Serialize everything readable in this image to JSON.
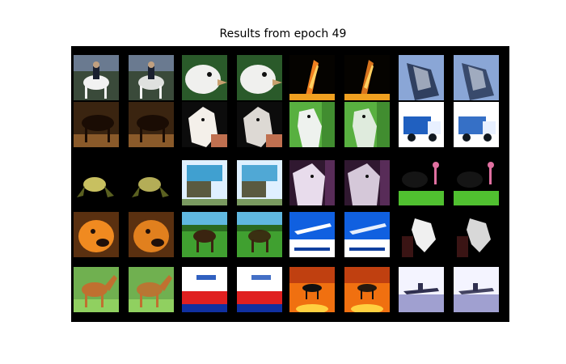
{
  "figure": {
    "title": "Results from epoch 49",
    "background": "#000000"
  },
  "grid": {
    "rows": 5,
    "groups": 4,
    "images_per_group": 2,
    "pairs": [
      [
        {
          "subject": "horse-rider",
          "colors": {
            "bg": "#3a4a3a",
            "fg": "#f2f2f2",
            "accent": "#1a2030"
          }
        },
        {
          "subject": "bird-head",
          "colors": {
            "bg": "#2a5a2a",
            "fg": "#f0f0ee",
            "accent": "#c9a070"
          }
        },
        {
          "subject": "bird-flame",
          "colors": {
            "bg": "#050300",
            "fg": "#f08020",
            "accent": "#ffd060"
          }
        },
        {
          "subject": "horse-head",
          "colors": {
            "bg": "#8aa6d6",
            "fg": "#304060",
            "accent": "#e6ecf6"
          }
        }
      ],
      [
        {
          "subject": "dark-horse",
          "colors": {
            "bg": "#3a2410",
            "fg": "#1a0c04",
            "accent": "#8a5a2a"
          }
        },
        {
          "subject": "white-horse-head",
          "colors": {
            "bg": "#0c0c0c",
            "fg": "#f4f0ea",
            "accent": "#c07050"
          }
        },
        {
          "subject": "horse-on-grass",
          "colors": {
            "bg": "#58b040",
            "fg": "#eef2ee",
            "accent": "#2a6a20"
          }
        },
        {
          "subject": "truck",
          "colors": {
            "bg": "#ffffff",
            "fg": "#2060c0",
            "accent": "#101820"
          }
        }
      ],
      [
        {
          "subject": "frog",
          "colors": {
            "bg": "#000000",
            "fg": "#c8c060",
            "accent": "#5a6020"
          }
        },
        {
          "subject": "blue-truck",
          "colors": {
            "bg": "#dff0ff",
            "fg": "#40a0d0",
            "accent": "#5a5a40"
          }
        },
        {
          "subject": "horse-close",
          "colors": {
            "bg": "#301830",
            "fg": "#e8dcec",
            "accent": "#804080"
          }
        },
        {
          "subject": "bird-pink",
          "colors": {
            "bg": "#000000",
            "fg": "#50c030",
            "accent": "#e070a0"
          }
        }
      ],
      [
        {
          "subject": "orange-dog",
          "colors": {
            "bg": "#5a3010",
            "fg": "#f08a20",
            "accent": "#20100a"
          }
        },
        {
          "subject": "horse-field",
          "colors": {
            "bg": "#40a030",
            "fg": "#3a2410",
            "accent": "#60b8e0"
          }
        },
        {
          "subject": "airplane",
          "colors": {
            "bg": "#1060e0",
            "fg": "#ffffff",
            "accent": "#30a0f0"
          }
        },
        {
          "subject": "black-horse-head",
          "colors": {
            "bg": "#000000",
            "fg": "#f0f0f0",
            "accent": "#202020"
          }
        }
      ],
      [
        {
          "subject": "brown-horse",
          "colors": {
            "bg": "#70b050",
            "fg": "#c07030",
            "accent": "#e8d0a0"
          }
        },
        {
          "subject": "red-scene",
          "colors": {
            "bg": "#ffffff",
            "fg": "#e02020",
            "accent": "#1030a0"
          }
        },
        {
          "subject": "horse-sunset",
          "colors": {
            "bg": "#f07010",
            "fg": "#101010",
            "accent": "#ffd040"
          }
        },
        {
          "subject": "airplane-snow",
          "colors": {
            "bg": "#f4f4ff",
            "fg": "#303050",
            "accent": "#a0a0d0"
          }
        }
      ]
    ]
  }
}
